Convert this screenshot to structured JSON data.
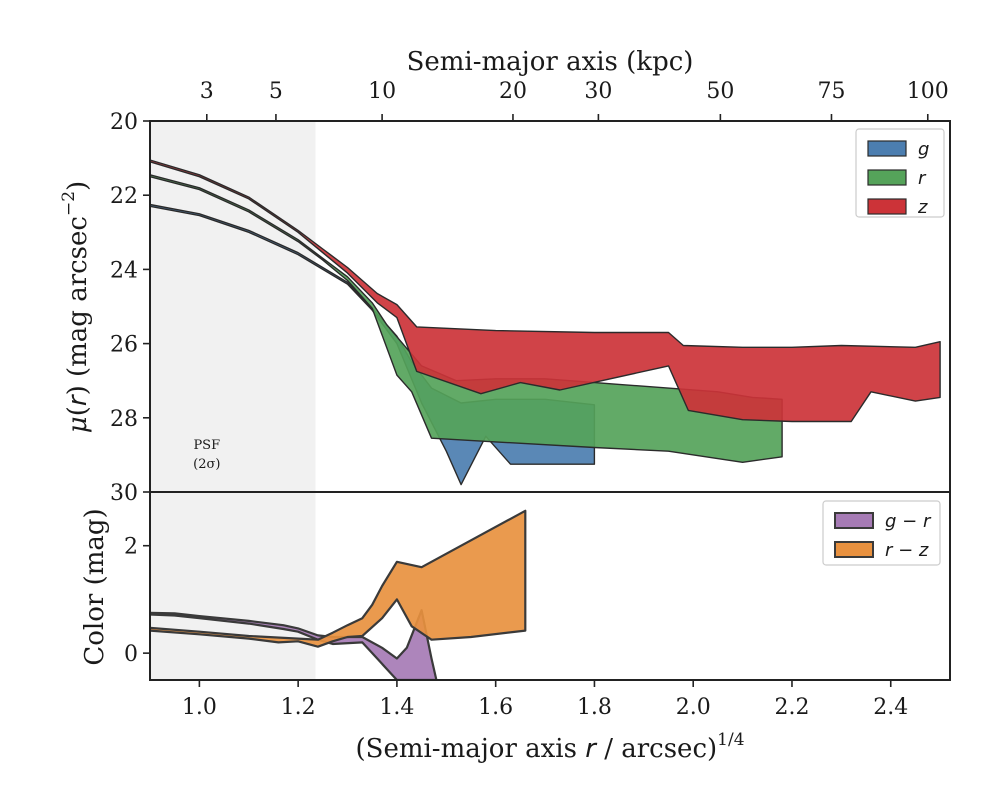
{
  "colors": {
    "g": "#4c7eb0",
    "r": "#55a35a",
    "z": "#cc3338",
    "g_r": "#a67bb5",
    "r_z": "#e8913f",
    "outline": "#2b2b2b",
    "psf_shade": "#f1f1f1"
  },
  "labels": {
    "top_xlabel": "Semi-major axis (kpc)",
    "bottom_xlabel_main": "(Semi-major axis ",
    "bottom_xlabel_r": "r",
    "bottom_xlabel_tail": " / arcsec)",
    "bottom_xlabel_exp": "1/4",
    "upper_ylabel_mu": "μ",
    "upper_ylabel_mid": "(",
    "upper_ylabel_r": "r",
    "upper_ylabel_tail": ") (mag arcsec",
    "upper_ylabel_exp": "−2",
    "upper_ylabel_close": ")",
    "lower_ylabel": "Color (mag)",
    "psf_line1": "PSF",
    "psf_line2": "(2σ)"
  },
  "chart_data": [
    {
      "type": "area",
      "panel": "surface-brightness",
      "x_axis": "(Semi-major axis r / arcsec)^1/4",
      "xlim": [
        0.9,
        2.52
      ],
      "ylim": [
        30,
        20
      ],
      "y_ticks": [
        20,
        22,
        24,
        26,
        28,
        30
      ],
      "top_axis_ticks_kpc": [
        3,
        5,
        10,
        20,
        30,
        50,
        75,
        100
      ],
      "top_axis_tick_positions": [
        1.015,
        1.155,
        1.37,
        1.635,
        1.808,
        2.055,
        2.28,
        2.475
      ],
      "psf_region_x": [
        0.9,
        1.235
      ],
      "legend": {
        "position": "top-right",
        "entries": [
          "g",
          "r",
          "z"
        ]
      },
      "series": [
        {
          "name": "g",
          "upper": [
            [
              0.9,
              22.25
            ],
            [
              1.0,
              22.5
            ],
            [
              1.1,
              22.95
            ],
            [
              1.2,
              23.55
            ],
            [
              1.3,
              24.35
            ],
            [
              1.35,
              25.05
            ],
            [
              1.4,
              25.8
            ],
            [
              1.43,
              26.5
            ],
            [
              1.47,
              27.2
            ],
            [
              1.53,
              27.6
            ],
            [
              1.6,
              27.5
            ],
            [
              1.7,
              27.5
            ],
            [
              1.8,
              27.65
            ]
          ],
          "lower": [
            [
              0.9,
              22.3
            ],
            [
              1.0,
              22.55
            ],
            [
              1.1,
              23.0
            ],
            [
              1.2,
              23.6
            ],
            [
              1.3,
              24.4
            ],
            [
              1.35,
              25.1
            ],
            [
              1.4,
              26.0
            ],
            [
              1.45,
              27.6
            ],
            [
              1.5,
              28.9
            ],
            [
              1.53,
              29.8
            ],
            [
              1.58,
              28.5
            ],
            [
              1.63,
              29.25
            ],
            [
              1.8,
              29.25
            ]
          ]
        },
        {
          "name": "r",
          "upper": [
            [
              0.9,
              21.45
            ],
            [
              1.0,
              21.8
            ],
            [
              1.1,
              22.4
            ],
            [
              1.2,
              23.2
            ],
            [
              1.25,
              23.7
            ],
            [
              1.3,
              24.2
            ],
            [
              1.35,
              24.9
            ],
            [
              1.38,
              25.5
            ],
            [
              1.45,
              26.6
            ],
            [
              1.52,
              27.0
            ],
            [
              1.6,
              26.95
            ],
            [
              1.7,
              26.95
            ],
            [
              1.85,
              27.1
            ],
            [
              2.05,
              27.3
            ],
            [
              2.12,
              27.45
            ],
            [
              2.18,
              27.5
            ]
          ],
          "lower": [
            [
              0.9,
              21.5
            ],
            [
              1.0,
              21.85
            ],
            [
              1.1,
              22.45
            ],
            [
              1.2,
              23.25
            ],
            [
              1.25,
              23.75
            ],
            [
              1.3,
              24.3
            ],
            [
              1.35,
              25.05
            ],
            [
              1.4,
              26.85
            ],
            [
              1.43,
              27.3
            ],
            [
              1.47,
              28.55
            ],
            [
              1.6,
              28.65
            ],
            [
              1.8,
              28.8
            ],
            [
              1.95,
              28.9
            ],
            [
              2.1,
              29.2
            ],
            [
              2.18,
              29.05
            ]
          ]
        },
        {
          "name": "z",
          "upper": [
            [
              0.9,
              21.05
            ],
            [
              1.0,
              21.45
            ],
            [
              1.1,
              22.05
            ],
            [
              1.2,
              22.95
            ],
            [
              1.25,
              23.45
            ],
            [
              1.3,
              23.95
            ],
            [
              1.36,
              24.65
            ],
            [
              1.4,
              24.95
            ],
            [
              1.44,
              25.55
            ],
            [
              1.6,
              25.65
            ],
            [
              1.8,
              25.7
            ],
            [
              1.95,
              25.7
            ],
            [
              1.98,
              26.05
            ],
            [
              2.1,
              26.1
            ],
            [
              2.2,
              26.1
            ],
            [
              2.3,
              26.05
            ],
            [
              2.45,
              26.1
            ],
            [
              2.5,
              25.95
            ]
          ],
          "lower": [
            [
              0.9,
              21.1
            ],
            [
              1.0,
              21.5
            ],
            [
              1.1,
              22.1
            ],
            [
              1.2,
              23.0
            ],
            [
              1.25,
              23.55
            ],
            [
              1.3,
              24.1
            ],
            [
              1.36,
              24.9
            ],
            [
              1.4,
              25.3
            ],
            [
              1.44,
              26.75
            ],
            [
              1.57,
              27.35
            ],
            [
              1.65,
              27.05
            ],
            [
              1.73,
              27.25
            ],
            [
              1.95,
              26.6
            ],
            [
              1.99,
              27.8
            ],
            [
              2.1,
              28.05
            ],
            [
              2.2,
              28.1
            ],
            [
              2.32,
              28.1
            ],
            [
              2.36,
              27.3
            ],
            [
              2.45,
              27.55
            ],
            [
              2.5,
              27.45
            ]
          ]
        }
      ]
    },
    {
      "type": "area",
      "panel": "color",
      "x_axis": "(Semi-major axis r / arcsec)^1/4",
      "xlim": [
        0.9,
        2.52
      ],
      "ylim": [
        -0.5,
        3.0
      ],
      "y_ticks": [
        0,
        2
      ],
      "x_ticks": [
        1.0,
        1.2,
        1.4,
        1.6,
        1.8,
        2.0,
        2.2,
        2.4
      ],
      "x_tick_labels": [
        "1.0",
        "1.2",
        "1.4",
        "1.6",
        "1.8",
        "2.0",
        "2.2",
        "2.4"
      ],
      "psf_region_x": [
        0.9,
        1.235
      ],
      "legend": {
        "position": "top-right",
        "entries": [
          "g − r",
          "r − z"
        ]
      },
      "series": [
        {
          "name": "g − r",
          "upper": [
            [
              0.9,
              0.75
            ],
            [
              0.95,
              0.74
            ],
            [
              1.0,
              0.69
            ],
            [
              1.1,
              0.6
            ],
            [
              1.17,
              0.52
            ],
            [
              1.2,
              0.46
            ],
            [
              1.24,
              0.33
            ],
            [
              1.27,
              0.3
            ],
            [
              1.33,
              0.3
            ],
            [
              1.37,
              0.1
            ],
            [
              1.4,
              -0.1
            ],
            [
              1.42,
              0.1
            ],
            [
              1.45,
              0.8
            ],
            [
              1.47,
              -0.1
            ],
            [
              1.48,
              -0.5
            ]
          ],
          "lower": [
            [
              0.9,
              0.72
            ],
            [
              0.95,
              0.7
            ],
            [
              1.0,
              0.65
            ],
            [
              1.1,
              0.55
            ],
            [
              1.17,
              0.45
            ],
            [
              1.2,
              0.4
            ],
            [
              1.24,
              0.25
            ],
            [
              1.27,
              0.17
            ],
            [
              1.33,
              0.2
            ],
            [
              1.36,
              -0.1
            ],
            [
              1.38,
              -0.3
            ],
            [
              1.4,
              -0.5
            ],
            [
              1.48,
              -0.5
            ]
          ]
        },
        {
          "name": "r − z",
          "upper": [
            [
              0.9,
              0.47
            ],
            [
              1.0,
              0.4
            ],
            [
              1.1,
              0.32
            ],
            [
              1.2,
              0.27
            ],
            [
              1.24,
              0.25
            ],
            [
              1.27,
              0.38
            ],
            [
              1.3,
              0.52
            ],
            [
              1.33,
              0.65
            ],
            [
              1.35,
              0.9
            ],
            [
              1.37,
              1.25
            ],
            [
              1.4,
              1.7
            ],
            [
              1.45,
              1.6
            ],
            [
              1.66,
              2.65
            ]
          ],
          "lower": [
            [
              0.9,
              0.42
            ],
            [
              1.0,
              0.35
            ],
            [
              1.1,
              0.27
            ],
            [
              1.16,
              0.2
            ],
            [
              1.2,
              0.22
            ],
            [
              1.24,
              0.12
            ],
            [
              1.27,
              0.22
            ],
            [
              1.3,
              0.3
            ],
            [
              1.33,
              0.32
            ],
            [
              1.37,
              0.65
            ],
            [
              1.4,
              1.0
            ],
            [
              1.43,
              0.5
            ],
            [
              1.47,
              0.25
            ],
            [
              1.55,
              0.3
            ],
            [
              1.66,
              0.42
            ]
          ]
        }
      ]
    }
  ]
}
